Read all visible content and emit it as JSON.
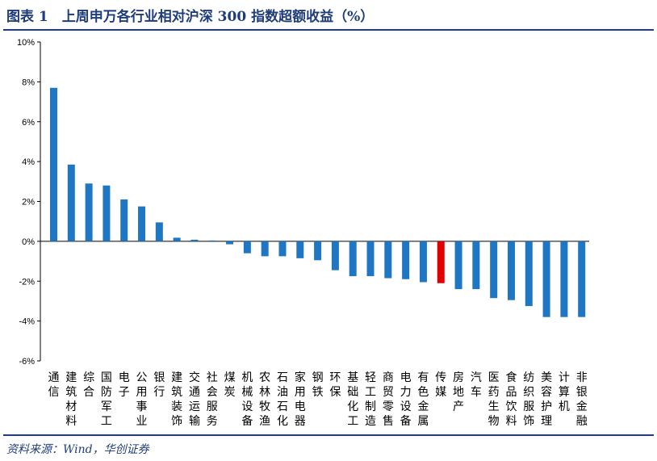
{
  "title": "图表 1　上周申万各行业相对沪深 300 指数超额收益（%）",
  "source": "资料来源：Wind，华创证券",
  "colors": {
    "bar": "#1f77c4",
    "highlight": "#e00000",
    "axis": "#000000",
    "text": "#000000"
  },
  "chart_data": {
    "type": "bar",
    "ylim": [
      -6,
      10
    ],
    "yticks": [
      "10%",
      "8%",
      "6%",
      "4%",
      "2%",
      "0%",
      "-2%",
      "-4%",
      "-6%"
    ],
    "ytick_values": [
      10,
      8,
      6,
      4,
      2,
      0,
      -2,
      -4,
      -6
    ],
    "highlight_category": "传媒",
    "categories": [
      "通信",
      "建筑材料",
      "综合",
      "国防军工",
      "电子",
      "公用事业",
      "银行",
      "建筑装饰",
      "交通运输",
      "社会服务",
      "煤炭",
      "机械设备",
      "农林牧渔",
      "石油石化",
      "家用电器",
      "钢铁",
      "环保",
      "基础化工",
      "轻工制造",
      "商贸零售",
      "电力设备",
      "有色金属",
      "传媒",
      "房地产",
      "汽车",
      "医药生物",
      "食品饮料",
      "纺织服饰",
      "美容护理",
      "计算机",
      "非银金融"
    ],
    "values": [
      7.7,
      3.85,
      2.9,
      2.8,
      2.1,
      1.75,
      0.95,
      0.18,
      0.08,
      0.04,
      -0.15,
      -0.6,
      -0.75,
      -0.75,
      -0.85,
      -0.95,
      -1.45,
      -1.75,
      -1.75,
      -1.85,
      -1.9,
      -2.05,
      -2.1,
      -2.4,
      -2.4,
      -2.85,
      -2.95,
      -3.25,
      -3.8,
      -3.8,
      -3.8
    ]
  }
}
